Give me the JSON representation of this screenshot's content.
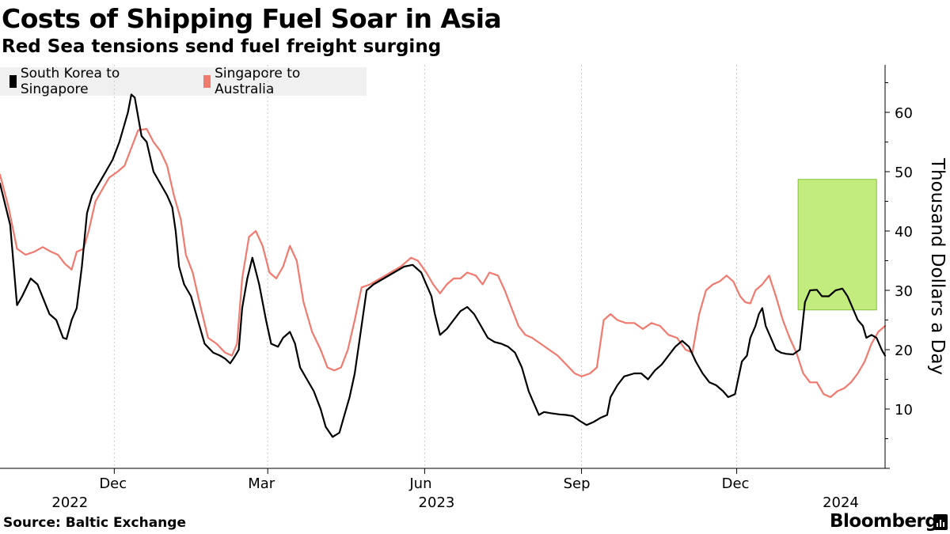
{
  "header": {
    "title": "Costs of Shipping Fuel Soar in Asia",
    "subtitle": "Red Sea tensions send fuel freight surging"
  },
  "footer": {
    "source": "Source: Baltic Exchange",
    "brand": "Bloomberg"
  },
  "colors": {
    "series1": "#000000",
    "series2": "#f07a6e",
    "highlight_fill": "#c3ec7e",
    "highlight_stroke": "#84c23a",
    "grid": "#c8c8c8"
  },
  "chart_data": {
    "type": "line",
    "title": "Costs of Shipping Fuel Soar in Asia",
    "subtitle": "Red Sea tensions send fuel freight surging",
    "ylabel": "Thousand Dollars a Day",
    "xlabel": "",
    "ylim": [
      0,
      68
    ],
    "xlim": [
      "2022-09-25",
      "2024-02-26"
    ],
    "yticks": [
      10,
      20,
      30,
      40,
      50,
      60
    ],
    "yaxis_side": "right",
    "grid": "vertical dotted at month ticks",
    "legend_position": "top-left",
    "month_ticks": [
      {
        "label": "Dec",
        "date": "2022-12-01"
      },
      {
        "label": "Mar",
        "date": "2023-03-01"
      },
      {
        "label": "Jun",
        "date": "2023-06-01"
      },
      {
        "label": "Sep",
        "date": "2023-09-01"
      },
      {
        "label": "Dec",
        "date": "2023-12-01"
      }
    ],
    "year_labels": [
      {
        "label": "2022",
        "date": "2022-11-05"
      },
      {
        "label": "2023",
        "date": "2023-06-08"
      },
      {
        "label": "2024",
        "date": "2024-01-31"
      }
    ],
    "highlight": {
      "x_start": "2024-01-06",
      "x_end": "2024-02-21",
      "y_start": 26.7,
      "y_end": 48.7
    },
    "series": [
      {
        "name": "South Korea to Singapore",
        "color": "#000000",
        "points": [
          [
            "2022-09-25",
            48
          ],
          [
            "2022-10-01",
            41
          ],
          [
            "2022-10-05",
            27.5
          ],
          [
            "2022-10-08",
            29
          ],
          [
            "2022-10-13",
            32
          ],
          [
            "2022-10-17",
            31
          ],
          [
            "2022-10-24",
            26
          ],
          [
            "2022-10-28",
            25
          ],
          [
            "2022-11-01",
            22
          ],
          [
            "2022-11-03",
            21.8
          ],
          [
            "2022-11-06",
            25
          ],
          [
            "2022-11-09",
            27
          ],
          [
            "2022-11-12",
            34
          ],
          [
            "2022-11-15",
            43
          ],
          [
            "2022-11-18",
            46
          ],
          [
            "2022-11-22",
            48
          ],
          [
            "2022-11-26",
            50
          ],
          [
            "2022-11-30",
            52
          ],
          [
            "2022-12-04",
            55
          ],
          [
            "2022-12-09",
            60
          ],
          [
            "2022-12-11",
            63
          ],
          [
            "2022-12-13",
            62.5
          ],
          [
            "2022-12-17",
            56
          ],
          [
            "2022-12-20",
            55
          ],
          [
            "2022-12-24",
            50
          ],
          [
            "2022-12-28",
            48
          ],
          [
            "2023-01-01",
            46
          ],
          [
            "2023-01-04",
            44
          ],
          [
            "2023-01-06",
            40
          ],
          [
            "2023-01-08",
            34
          ],
          [
            "2023-01-11",
            31
          ],
          [
            "2023-01-15",
            29
          ],
          [
            "2023-01-20",
            24
          ],
          [
            "2023-01-23",
            21
          ],
          [
            "2023-01-28",
            19.5
          ],
          [
            "2023-02-01",
            19
          ],
          [
            "2023-02-04",
            18.5
          ],
          [
            "2023-02-07",
            17.7
          ],
          [
            "2023-02-10",
            19
          ],
          [
            "2023-02-12",
            20
          ],
          [
            "2023-02-14",
            27
          ],
          [
            "2023-02-17",
            32
          ],
          [
            "2023-02-20",
            35.5
          ],
          [
            "2023-02-24",
            31
          ],
          [
            "2023-02-28",
            25
          ],
          [
            "2023-03-03",
            21
          ],
          [
            "2023-03-07",
            20.5
          ],
          [
            "2023-03-10",
            22
          ],
          [
            "2023-03-14",
            23
          ],
          [
            "2023-03-17",
            21
          ],
          [
            "2023-03-20",
            17
          ],
          [
            "2023-03-24",
            15
          ],
          [
            "2023-03-28",
            13
          ],
          [
            "2023-04-01",
            10
          ],
          [
            "2023-04-04",
            7
          ],
          [
            "2023-04-08",
            5.3
          ],
          [
            "2023-04-12",
            6
          ],
          [
            "2023-04-15",
            9
          ],
          [
            "2023-04-18",
            12
          ],
          [
            "2023-04-21",
            16
          ],
          [
            "2023-04-25",
            24
          ],
          [
            "2023-04-28",
            30
          ],
          [
            "2023-05-02",
            31
          ],
          [
            "2023-05-08",
            32
          ],
          [
            "2023-05-14",
            33
          ],
          [
            "2023-05-20",
            34
          ],
          [
            "2023-05-25",
            34.3
          ],
          [
            "2023-05-30",
            33
          ],
          [
            "2023-06-02",
            31
          ],
          [
            "2023-06-05",
            29
          ],
          [
            "2023-06-07",
            26
          ],
          [
            "2023-06-10",
            22.5
          ],
          [
            "2023-06-14",
            23.5
          ],
          [
            "2023-06-18",
            25
          ],
          [
            "2023-06-22",
            26.5
          ],
          [
            "2023-06-26",
            27.2
          ],
          [
            "2023-06-30",
            26
          ],
          [
            "2023-07-04",
            24
          ],
          [
            "2023-07-08",
            22
          ],
          [
            "2023-07-12",
            21.3
          ],
          [
            "2023-07-16",
            21
          ],
          [
            "2023-07-20",
            20.5
          ],
          [
            "2023-07-24",
            19.5
          ],
          [
            "2023-07-28",
            17
          ],
          [
            "2023-08-01",
            13
          ],
          [
            "2023-08-04",
            11
          ],
          [
            "2023-08-07",
            9
          ],
          [
            "2023-08-10",
            9.5
          ],
          [
            "2023-08-14",
            9.3
          ],
          [
            "2023-08-19",
            9.1
          ],
          [
            "2023-08-23",
            9
          ],
          [
            "2023-08-27",
            8.8
          ],
          [
            "2023-08-31",
            8
          ],
          [
            "2023-09-04",
            7.3
          ],
          [
            "2023-09-08",
            7.8
          ],
          [
            "2023-09-12",
            8.5
          ],
          [
            "2023-09-16",
            9
          ],
          [
            "2023-09-18",
            12
          ],
          [
            "2023-09-22",
            14
          ],
          [
            "2023-09-26",
            15.5
          ],
          [
            "2023-10-02",
            16
          ],
          [
            "2023-10-06",
            16
          ],
          [
            "2023-10-10",
            15
          ],
          [
            "2023-10-14",
            16.5
          ],
          [
            "2023-10-18",
            17.5
          ],
          [
            "2023-10-22",
            19
          ],
          [
            "2023-10-26",
            20.5
          ],
          [
            "2023-10-30",
            21.5
          ],
          [
            "2023-11-03",
            20.5
          ],
          [
            "2023-11-07",
            18
          ],
          [
            "2023-11-11",
            16
          ],
          [
            "2023-11-15",
            14.5
          ],
          [
            "2023-11-19",
            14
          ],
          [
            "2023-11-23",
            13
          ],
          [
            "2023-11-26",
            12
          ],
          [
            "2023-11-30",
            12.5
          ],
          [
            "2023-12-04",
            18
          ],
          [
            "2023-12-07",
            19
          ],
          [
            "2023-12-09",
            22
          ],
          [
            "2023-12-12",
            24
          ],
          [
            "2023-12-14",
            26
          ],
          [
            "2023-12-16",
            27
          ],
          [
            "2023-12-18",
            24
          ],
          [
            "2023-12-21",
            22
          ],
          [
            "2023-12-24",
            20
          ],
          [
            "2023-12-27",
            19.5
          ],
          [
            "2023-12-30",
            19.3
          ],
          [
            "2024-01-03",
            19.2
          ],
          [
            "2024-01-07",
            20
          ],
          [
            "2024-01-10",
            28
          ],
          [
            "2024-01-13",
            30
          ],
          [
            "2024-01-17",
            30.1
          ],
          [
            "2024-01-20",
            29
          ],
          [
            "2024-01-24",
            29
          ],
          [
            "2024-01-28",
            30
          ],
          [
            "2024-02-01",
            30.3
          ],
          [
            "2024-02-04",
            29
          ],
          [
            "2024-02-07",
            27
          ],
          [
            "2024-02-10",
            25
          ],
          [
            "2024-02-13",
            24
          ],
          [
            "2024-02-15",
            22
          ],
          [
            "2024-02-18",
            22.5
          ],
          [
            "2024-02-21",
            22
          ],
          [
            "2024-02-24",
            20
          ],
          [
            "2024-02-26",
            19
          ]
        ]
      },
      {
        "name": "Singapore to Australia",
        "color": "#f07a6e",
        "points": [
          [
            "2022-09-25",
            49.5
          ],
          [
            "2022-09-30",
            44
          ],
          [
            "2022-10-05",
            37
          ],
          [
            "2022-10-10",
            36
          ],
          [
            "2022-10-15",
            36.5
          ],
          [
            "2022-10-20",
            37.3
          ],
          [
            "2022-10-25",
            36.5
          ],
          [
            "2022-10-29",
            36
          ],
          [
            "2022-11-02",
            34.5
          ],
          [
            "2022-11-06",
            33.5
          ],
          [
            "2022-11-09",
            36.5
          ],
          [
            "2022-11-13",
            37
          ],
          [
            "2022-11-16",
            40
          ],
          [
            "2022-11-20",
            45
          ],
          [
            "2022-11-24",
            47
          ],
          [
            "2022-11-28",
            49
          ],
          [
            "2022-12-03",
            50
          ],
          [
            "2022-12-07",
            51
          ],
          [
            "2022-12-11",
            54
          ],
          [
            "2022-12-15",
            57
          ],
          [
            "2022-12-20",
            57.2
          ],
          [
            "2022-12-24",
            55
          ],
          [
            "2022-12-28",
            53.5
          ],
          [
            "2023-01-01",
            51
          ],
          [
            "2023-01-05",
            46
          ],
          [
            "2023-01-09",
            42
          ],
          [
            "2023-01-12",
            36
          ],
          [
            "2023-01-16",
            33
          ],
          [
            "2023-01-20",
            28
          ],
          [
            "2023-01-25",
            22
          ],
          [
            "2023-01-30",
            21
          ],
          [
            "2023-02-04",
            19.5
          ],
          [
            "2023-02-08",
            19
          ],
          [
            "2023-02-11",
            21
          ],
          [
            "2023-02-14",
            32
          ],
          [
            "2023-02-18",
            39
          ],
          [
            "2023-02-22",
            40
          ],
          [
            "2023-02-26",
            37.5
          ],
          [
            "2023-03-02",
            33
          ],
          [
            "2023-03-06",
            32
          ],
          [
            "2023-03-10",
            34
          ],
          [
            "2023-03-14",
            37.5
          ],
          [
            "2023-03-18",
            35
          ],
          [
            "2023-03-22",
            28
          ],
          [
            "2023-03-27",
            23
          ],
          [
            "2023-04-01",
            20
          ],
          [
            "2023-04-05",
            17
          ],
          [
            "2023-04-09",
            16.5
          ],
          [
            "2023-04-13",
            17
          ],
          [
            "2023-04-17",
            20
          ],
          [
            "2023-04-21",
            25
          ],
          [
            "2023-04-25",
            30.5
          ],
          [
            "2023-04-30",
            31
          ],
          [
            "2023-05-06",
            32
          ],
          [
            "2023-05-12",
            33
          ],
          [
            "2023-05-18",
            34
          ],
          [
            "2023-05-24",
            35.5
          ],
          [
            "2023-05-28",
            35
          ],
          [
            "2023-06-02",
            33
          ],
          [
            "2023-06-06",
            31
          ],
          [
            "2023-06-10",
            29.5
          ],
          [
            "2023-06-14",
            31
          ],
          [
            "2023-06-18",
            32
          ],
          [
            "2023-06-22",
            32
          ],
          [
            "2023-06-26",
            33
          ],
          [
            "2023-07-01",
            32.5
          ],
          [
            "2023-07-05",
            31
          ],
          [
            "2023-07-09",
            33
          ],
          [
            "2023-07-14",
            32.5
          ],
          [
            "2023-07-18",
            30
          ],
          [
            "2023-07-22",
            27
          ],
          [
            "2023-07-26",
            24
          ],
          [
            "2023-07-30",
            22.5
          ],
          [
            "2023-08-03",
            22
          ],
          [
            "2023-08-08",
            21
          ],
          [
            "2023-08-13",
            20
          ],
          [
            "2023-08-18",
            19
          ],
          [
            "2023-08-23",
            17.5
          ],
          [
            "2023-08-28",
            16
          ],
          [
            "2023-09-01",
            15.5
          ],
          [
            "2023-09-06",
            16
          ],
          [
            "2023-09-10",
            17
          ],
          [
            "2023-09-14",
            25
          ],
          [
            "2023-09-18",
            26
          ],
          [
            "2023-09-22",
            25
          ],
          [
            "2023-09-27",
            24.5
          ],
          [
            "2023-10-02",
            24.5
          ],
          [
            "2023-10-07",
            23.5
          ],
          [
            "2023-10-12",
            24.5
          ],
          [
            "2023-10-17",
            24
          ],
          [
            "2023-10-22",
            22.5
          ],
          [
            "2023-10-27",
            22
          ],
          [
            "2023-11-01",
            20
          ],
          [
            "2023-11-05",
            19.5
          ],
          [
            "2023-11-09",
            26
          ],
          [
            "2023-11-13",
            30
          ],
          [
            "2023-11-17",
            31
          ],
          [
            "2023-11-21",
            31.5
          ],
          [
            "2023-11-25",
            32.5
          ],
          [
            "2023-11-29",
            31.5
          ],
          [
            "2023-12-03",
            29
          ],
          [
            "2023-12-06",
            28
          ],
          [
            "2023-12-09",
            27.8
          ],
          [
            "2023-12-12",
            30
          ],
          [
            "2023-12-16",
            31
          ],
          [
            "2023-12-20",
            32.5
          ],
          [
            "2023-12-24",
            29
          ],
          [
            "2023-12-28",
            25
          ],
          [
            "2024-01-01",
            22
          ],
          [
            "2024-01-05",
            19.5
          ],
          [
            "2024-01-09",
            16
          ],
          [
            "2024-01-13",
            14.5
          ],
          [
            "2024-01-17",
            14.5
          ],
          [
            "2024-01-21",
            12.5
          ],
          [
            "2024-01-25",
            12
          ],
          [
            "2024-01-29",
            13
          ],
          [
            "2024-02-02",
            13.5
          ],
          [
            "2024-02-06",
            14.5
          ],
          [
            "2024-02-10",
            16
          ],
          [
            "2024-02-14",
            18
          ],
          [
            "2024-02-18",
            21
          ],
          [
            "2024-02-22",
            23
          ],
          [
            "2024-02-26",
            24
          ]
        ]
      }
    ]
  }
}
